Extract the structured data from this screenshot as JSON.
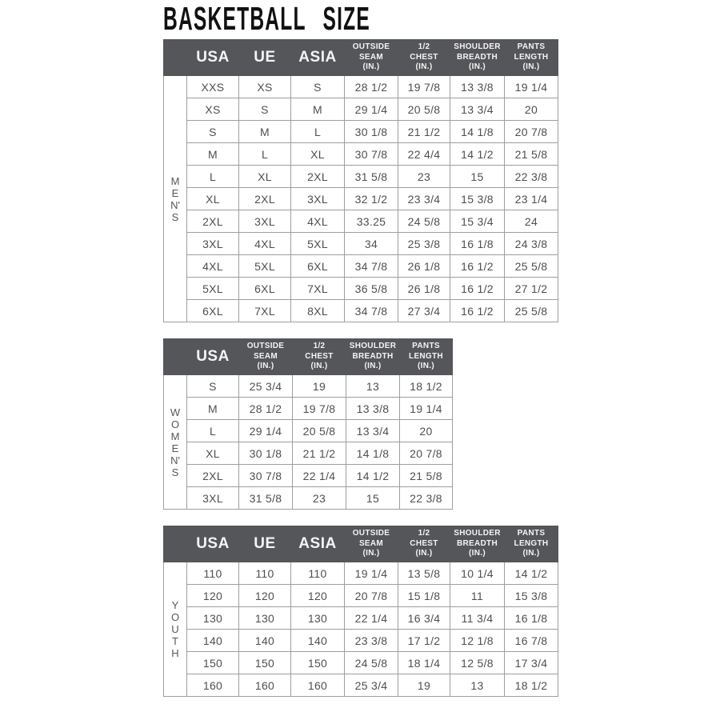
{
  "page_title": "BASKETBALL SIZE",
  "colors": {
    "header_bg": "#55565a",
    "header_text": "#f4f4f4",
    "cell_text": "#4f4f4f",
    "inner_border": "#9e9e9e",
    "outer_border": "#7f7f7f"
  },
  "tables": [
    {
      "id": "mens",
      "group_label": "MEN'S",
      "group_label_chars": [
        "M",
        "E",
        "N'",
        "S"
      ],
      "headers": [
        [
          "USA"
        ],
        [
          "UE"
        ],
        [
          "ASIA"
        ],
        [
          "OUTSIDE",
          "SEAM",
          "(IN.)"
        ],
        [
          "1/2",
          "CHEST",
          "(IN.)"
        ],
        [
          "SHOULDER",
          "BREADTH",
          "(IN.)"
        ],
        [
          "PANTS",
          "LENGTH",
          "(IN.)"
        ]
      ],
      "rows": [
        [
          "XXS",
          "XS",
          "S",
          "28 1/2",
          "19 7/8",
          "13 3/8",
          "19 1/4"
        ],
        [
          "XS",
          "S",
          "M",
          "29 1/4",
          "20 5/8",
          "13 3/4",
          "20"
        ],
        [
          "S",
          "M",
          "L",
          "30 1/8",
          "21 1/2",
          "14 1/8",
          "20 7/8"
        ],
        [
          "M",
          "L",
          "XL",
          "30 7/8",
          "22 4/4",
          "14 1/2",
          "21 5/8"
        ],
        [
          "L",
          "XL",
          "2XL",
          "31 5/8",
          "23",
          "15",
          "22 3/8"
        ],
        [
          "XL",
          "2XL",
          "3XL",
          "32 1/2",
          "23 3/4",
          "15 3/8",
          "23 1/4"
        ],
        [
          "2XL",
          "3XL",
          "4XL",
          "33.25",
          "24 5/8",
          "15 3/4",
          "24"
        ],
        [
          "3XL",
          "4XL",
          "5XL",
          "34",
          "25 3/8",
          "16 1/8",
          "24 3/8"
        ],
        [
          "4XL",
          "5XL",
          "6XL",
          "34 7/8",
          "26 1/8",
          "16 1/2",
          "25 5/8"
        ],
        [
          "5XL",
          "6XL",
          "7XL",
          "36 5/8",
          "26 1/8",
          "16 1/2",
          "27 1/2"
        ],
        [
          "6XL",
          "7XL",
          "8XL",
          "34 7/8",
          "27 3/4",
          "16 1/2",
          "25 5/8"
        ]
      ]
    },
    {
      "id": "womens",
      "group_label": "WOMEN'S",
      "group_label_chars": [
        "W",
        "O",
        "M",
        "E",
        "N'",
        "S"
      ],
      "headers": [
        [
          "USA"
        ],
        [
          "OUTSIDE",
          "SEAM",
          "(IN.)"
        ],
        [
          "1/2",
          "CHEST",
          "(IN.)"
        ],
        [
          "SHOULDER",
          "BREADTH",
          "(IN.)"
        ],
        [
          "PANTS",
          "LENGTH",
          "(IN.)"
        ]
      ],
      "rows": [
        [
          "S",
          "25 3/4",
          "19",
          "13",
          "18 1/2"
        ],
        [
          "M",
          "28 1/2",
          "19 7/8",
          "13 3/8",
          "19 1/4"
        ],
        [
          "L",
          "29 1/4",
          "20 5/8",
          "13 3/4",
          "20"
        ],
        [
          "XL",
          "30 1/8",
          "21 1/2",
          "14 1/8",
          "20 7/8"
        ],
        [
          "2XL",
          "30 7/8",
          "22 1/4",
          "14 1/2",
          "21 5/8"
        ],
        [
          "3XL",
          "31 5/8",
          "23",
          "15",
          "22 3/8"
        ]
      ]
    },
    {
      "id": "youth",
      "group_label": "YOUTH",
      "group_label_chars": [
        "Y",
        "O",
        "U",
        "T",
        "H"
      ],
      "headers": [
        [
          "USA"
        ],
        [
          "UE"
        ],
        [
          "ASIA"
        ],
        [
          "OUTSIDE",
          "SEAM",
          "(IN.)"
        ],
        [
          "1/2",
          "CHEST",
          "(IN.)"
        ],
        [
          "SHOULDER",
          "BREADTH",
          "(IN.)"
        ],
        [
          "PANTS",
          "LENGTH",
          "(IN.)"
        ]
      ],
      "rows": [
        [
          "110",
          "110",
          "110",
          "19 1/4",
          "13 5/8",
          "10 1/4",
          "14 1/2"
        ],
        [
          "120",
          "120",
          "120",
          "20 7/8",
          "15 1/8",
          "11",
          "15 3/8"
        ],
        [
          "130",
          "130",
          "130",
          "22 1/4",
          "16 3/4",
          "11 3/4",
          "16 1/8"
        ],
        [
          "140",
          "140",
          "140",
          "23 3/8",
          "17 1/2",
          "12 1/8",
          "16 7/8"
        ],
        [
          "150",
          "150",
          "150",
          "24 5/8",
          "18 1/4",
          "12 5/8",
          "17 3/4"
        ],
        [
          "160",
          "160",
          "160",
          "25 3/4",
          "19",
          "13",
          "18 1/2"
        ]
      ]
    }
  ]
}
